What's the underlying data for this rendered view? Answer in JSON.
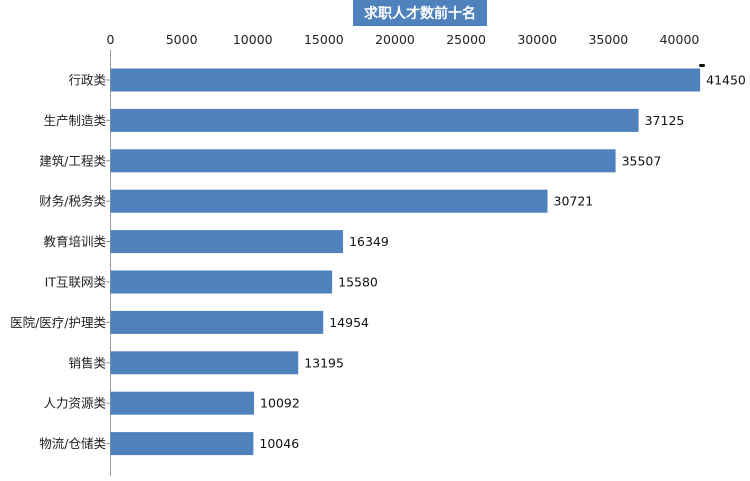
{
  "chart_data": {
    "type": "bar",
    "orientation": "horizontal",
    "title": "求职人才数前十名",
    "categories": [
      "行政类",
      "生产制造类",
      "建筑/工程类",
      "财务/税务类",
      "教育培训类",
      "IT互联网类",
      "医院/医疗/护理类",
      "销售类",
      "人力资源类",
      "物流/仓储类"
    ],
    "values": [
      41450,
      37125,
      35507,
      30721,
      16349,
      15580,
      14954,
      13195,
      10092,
      10046
    ],
    "data_labels": [
      "41450",
      "37125",
      "35507",
      "30721",
      "16349",
      "15580",
      "14954",
      "13195",
      "10092",
      "10046"
    ],
    "x_ticks": [
      "0",
      "5000",
      "10000",
      "15000",
      "20000",
      "25000",
      "30000",
      "35000",
      "40000"
    ],
    "x_tick_values": [
      0,
      5000,
      10000,
      15000,
      20000,
      25000,
      30000,
      35000,
      40000
    ],
    "xlim": [
      0,
      42000
    ],
    "xlabel": "",
    "ylabel": "",
    "x_axis_position": "top",
    "grid": false,
    "legend": "none",
    "bar_color": "#4f81bd",
    "title_background": "#4f81bd",
    "title_color": "#ffffff"
  }
}
